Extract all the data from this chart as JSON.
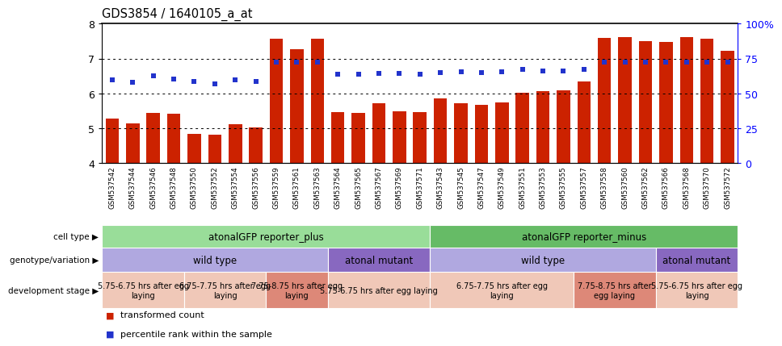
{
  "title": "GDS3854 / 1640105_a_at",
  "ylim": [
    4,
    8
  ],
  "yticks": [
    4,
    5,
    6,
    7,
    8
  ],
  "right_yticks": [
    0,
    25,
    50,
    75,
    100
  ],
  "right_ytick_labels": [
    "0",
    "25",
    "50",
    "75",
    "100%"
  ],
  "samples": [
    "GSM537542",
    "GSM537544",
    "GSM537546",
    "GSM537548",
    "GSM537550",
    "GSM537552",
    "GSM537554",
    "GSM537556",
    "GSM537559",
    "GSM537561",
    "GSM537563",
    "GSM537564",
    "GSM537565",
    "GSM537567",
    "GSM537569",
    "GSM537571",
    "GSM537543",
    "GSM537545",
    "GSM537547",
    "GSM537549",
    "GSM537551",
    "GSM537553",
    "GSM537555",
    "GSM537557",
    "GSM537558",
    "GSM537560",
    "GSM537562",
    "GSM537566",
    "GSM537568",
    "GSM537570",
    "GSM537572"
  ],
  "bar_values": [
    5.28,
    5.15,
    5.45,
    5.41,
    4.85,
    4.82,
    5.12,
    5.02,
    7.58,
    7.27,
    7.58,
    5.47,
    5.44,
    5.72,
    5.49,
    5.47,
    5.85,
    5.72,
    5.67,
    5.75,
    6.02,
    6.07,
    6.08,
    6.35,
    7.6,
    7.62,
    7.5,
    7.48,
    7.62,
    7.58,
    7.22
  ],
  "dot_values": [
    6.38,
    6.32,
    6.51,
    6.42,
    6.34,
    6.27,
    6.4,
    6.34,
    6.9,
    6.9,
    6.9,
    6.55,
    6.55,
    6.58,
    6.58,
    6.55,
    6.6,
    6.62,
    6.6,
    6.62,
    6.68,
    6.65,
    6.65,
    6.68,
    6.9,
    6.9,
    6.9,
    6.9,
    6.9,
    6.9,
    6.9
  ],
  "bar_color": "#cc2200",
  "dot_color": "#2233cc",
  "cell_type_regions": [
    {
      "label": "atonalGFP reporter_plus",
      "start": 0,
      "end": 16,
      "color": "#99dd99"
    },
    {
      "label": "atonalGFP reporter_minus",
      "start": 16,
      "end": 31,
      "color": "#66bb66"
    }
  ],
  "genotype_regions": [
    {
      "label": "wild type",
      "start": 0,
      "end": 11,
      "color": "#b0a8e0"
    },
    {
      "label": "atonal mutant",
      "start": 11,
      "end": 16,
      "color": "#8868c0"
    },
    {
      "label": "wild type",
      "start": 16,
      "end": 27,
      "color": "#b0a8e0"
    },
    {
      "label": "atonal mutant",
      "start": 27,
      "end": 31,
      "color": "#8868c0"
    }
  ],
  "dev_stage_regions": [
    {
      "label": "5.75-6.75 hrs after egg\nlaying",
      "start": 0,
      "end": 4,
      "color": "#f0c8b8"
    },
    {
      "label": "6.75-7.75 hrs after egg\nlaying",
      "start": 4,
      "end": 8,
      "color": "#f0c8b8"
    },
    {
      "label": "7.75-8.75 hrs after egg\nlaying",
      "start": 8,
      "end": 11,
      "color": "#dd8878"
    },
    {
      "label": "5.75-6.75 hrs after egg laying",
      "start": 11,
      "end": 16,
      "color": "#f0c8b8"
    },
    {
      "label": "6.75-7.75 hrs after egg\nlaying",
      "start": 16,
      "end": 23,
      "color": "#f0c8b8"
    },
    {
      "label": "7.75-8.75 hrs after\negg laying",
      "start": 23,
      "end": 27,
      "color": "#dd8878"
    },
    {
      "label": "5.75-6.75 hrs after egg\nlaying",
      "start": 27,
      "end": 31,
      "color": "#f0c8b8"
    }
  ],
  "xticklabel_bg": "#d8d8d8",
  "legend_items": [
    {
      "label": "transformed count",
      "color": "#cc2200"
    },
    {
      "label": "percentile rank within the sample",
      "color": "#2233cc"
    }
  ]
}
